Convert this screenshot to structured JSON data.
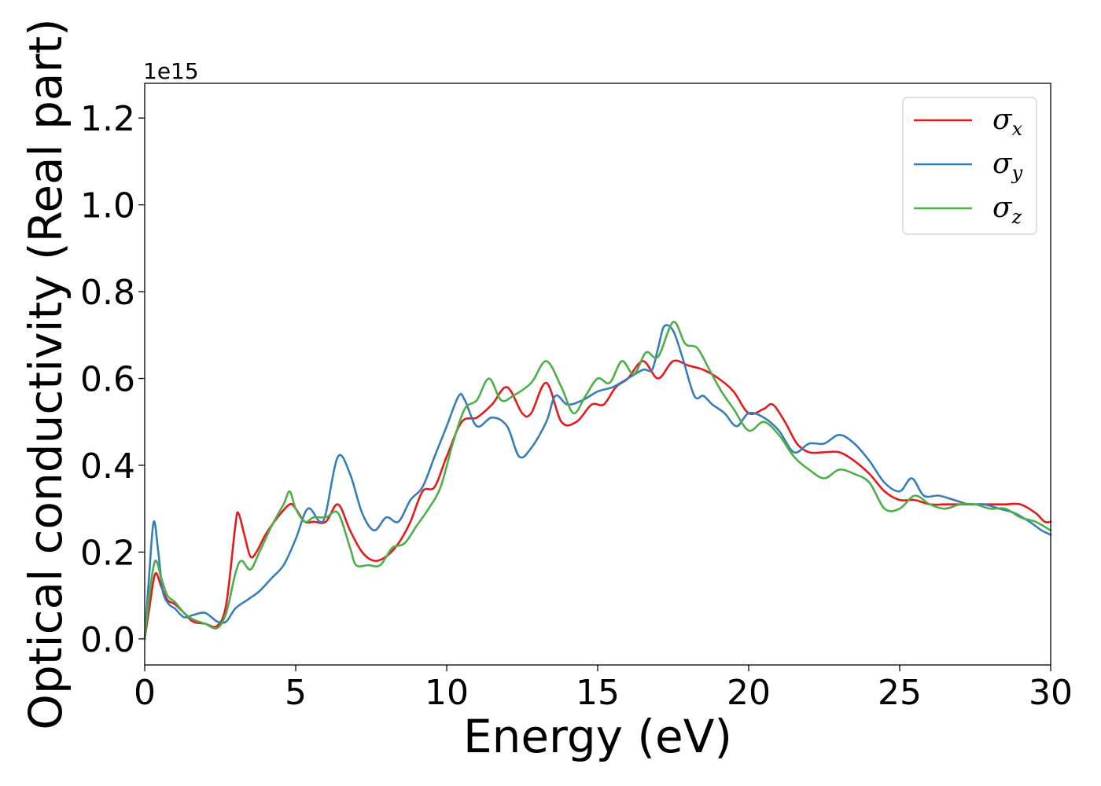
{
  "chart_data": {
    "type": "line",
    "xlabel": "Energy (eV)",
    "ylabel": "Optical conductivity (Real part)",
    "y_offset_label": "1e15",
    "xlim": [
      0,
      30
    ],
    "ylim": [
      -0.06,
      1.28
    ],
    "x_ticks": [
      0,
      5,
      10,
      15,
      20,
      25,
      30
    ],
    "x_tick_labels": [
      "0",
      "5",
      "10",
      "15",
      "20",
      "25",
      "30"
    ],
    "y_ticks": [
      0.0,
      0.2,
      0.4,
      0.6,
      0.8,
      1.0,
      1.2
    ],
    "y_tick_labels": [
      "0.0",
      "0.2",
      "0.4",
      "0.6",
      "0.8",
      "1.0",
      "1.2"
    ],
    "grid": false,
    "legend_position": "top-right",
    "series": [
      {
        "name": "σx",
        "symbol": "σ",
        "subscript": "x",
        "color": "#e41a1c",
        "x": [
          0,
          0.15,
          0.35,
          0.55,
          0.75,
          1.0,
          1.3,
          1.6,
          2.0,
          2.4,
          2.7,
          3.0,
          3.1,
          3.3,
          3.5,
          3.7,
          4.0,
          4.4,
          4.8,
          5.0,
          5.3,
          5.6,
          6.0,
          6.4,
          6.8,
          7.2,
          7.6,
          8.0,
          8.4,
          8.8,
          9.2,
          9.6,
          10.0,
          10.5,
          11.0,
          11.5,
          12.0,
          12.5,
          12.8,
          13.3,
          13.8,
          14.3,
          14.8,
          15.2,
          15.6,
          16.0,
          16.5,
          17.0,
          17.5,
          18.0,
          18.5,
          19.0,
          19.5,
          20.0,
          20.5,
          20.8,
          21.2,
          21.6,
          22.0,
          22.5,
          23.0,
          23.5,
          24.0,
          24.5,
          25.0,
          25.5,
          26.0,
          26.5,
          27.0,
          27.5,
          28.0,
          28.5,
          29.0,
          29.5,
          29.8,
          30.0
        ],
        "y": [
          0.0,
          0.07,
          0.15,
          0.12,
          0.09,
          0.08,
          0.06,
          0.04,
          0.035,
          0.03,
          0.08,
          0.26,
          0.29,
          0.24,
          0.19,
          0.2,
          0.24,
          0.28,
          0.31,
          0.3,
          0.27,
          0.27,
          0.27,
          0.31,
          0.25,
          0.2,
          0.18,
          0.19,
          0.22,
          0.27,
          0.34,
          0.35,
          0.42,
          0.5,
          0.51,
          0.54,
          0.58,
          0.52,
          0.52,
          0.59,
          0.5,
          0.5,
          0.54,
          0.54,
          0.58,
          0.6,
          0.64,
          0.6,
          0.64,
          0.63,
          0.62,
          0.6,
          0.57,
          0.52,
          0.53,
          0.54,
          0.5,
          0.45,
          0.43,
          0.43,
          0.43,
          0.41,
          0.38,
          0.34,
          0.32,
          0.32,
          0.31,
          0.31,
          0.31,
          0.31,
          0.31,
          0.31,
          0.31,
          0.29,
          0.27,
          0.27
        ]
      },
      {
        "name": "σy",
        "symbol": "σ",
        "subscript": "y",
        "color": "#377eb8",
        "x": [
          0,
          0.15,
          0.3,
          0.45,
          0.6,
          0.8,
          1.0,
          1.3,
          1.6,
          2.0,
          2.4,
          2.7,
          3.0,
          3.4,
          3.8,
          4.2,
          4.6,
          5.0,
          5.4,
          5.8,
          6.0,
          6.4,
          6.8,
          7.2,
          7.6,
          8.0,
          8.4,
          8.8,
          9.2,
          9.6,
          10.0,
          10.4,
          10.6,
          11.0,
          11.5,
          12.0,
          12.4,
          12.8,
          13.3,
          13.6,
          14.0,
          14.5,
          15.0,
          15.5,
          16.0,
          16.5,
          16.8,
          17.0,
          17.2,
          17.5,
          17.8,
          18.2,
          18.5,
          18.8,
          19.2,
          19.6,
          20.0,
          20.5,
          21.0,
          21.5,
          22.0,
          22.5,
          23.0,
          23.5,
          24.0,
          24.5,
          25.0,
          25.4,
          25.8,
          26.3,
          26.8,
          27.3,
          27.8,
          28.3,
          28.8,
          29.3,
          29.7,
          30.0
        ],
        "y": [
          0.0,
          0.15,
          0.27,
          0.2,
          0.11,
          0.08,
          0.07,
          0.05,
          0.055,
          0.06,
          0.04,
          0.04,
          0.07,
          0.09,
          0.11,
          0.14,
          0.17,
          0.23,
          0.3,
          0.27,
          0.29,
          0.42,
          0.38,
          0.29,
          0.25,
          0.28,
          0.27,
          0.32,
          0.35,
          0.42,
          0.49,
          0.56,
          0.55,
          0.49,
          0.51,
          0.49,
          0.42,
          0.44,
          0.5,
          0.56,
          0.54,
          0.55,
          0.57,
          0.58,
          0.6,
          0.62,
          0.62,
          0.67,
          0.72,
          0.71,
          0.65,
          0.56,
          0.56,
          0.54,
          0.52,
          0.49,
          0.52,
          0.51,
          0.48,
          0.43,
          0.45,
          0.45,
          0.47,
          0.45,
          0.41,
          0.36,
          0.34,
          0.37,
          0.33,
          0.33,
          0.32,
          0.31,
          0.31,
          0.3,
          0.29,
          0.27,
          0.25,
          0.24
        ]
      },
      {
        "name": "σz",
        "symbol": "σ",
        "subscript": "z",
        "color": "#4daf4a",
        "x": [
          0,
          0.15,
          0.35,
          0.55,
          0.75,
          1.0,
          1.3,
          1.6,
          2.0,
          2.4,
          2.7,
          3.0,
          3.2,
          3.5,
          3.8,
          4.2,
          4.6,
          4.8,
          5.0,
          5.3,
          5.6,
          6.0,
          6.4,
          6.8,
          7.0,
          7.4,
          7.8,
          8.2,
          8.6,
          9.0,
          9.4,
          9.8,
          10.2,
          10.6,
          11.0,
          11.4,
          11.8,
          12.2,
          12.8,
          13.3,
          13.8,
          14.2,
          14.6,
          15.0,
          15.4,
          15.8,
          16.2,
          16.6,
          17.0,
          17.5,
          17.9,
          18.3,
          18.7,
          19.1,
          19.5,
          20.0,
          20.5,
          21.0,
          21.5,
          22.0,
          22.5,
          23.0,
          23.5,
          24.0,
          24.5,
          25.0,
          25.5,
          26.0,
          26.5,
          27.0,
          27.5,
          28.0,
          28.5,
          29.0,
          29.5,
          30.0
        ],
        "y": [
          0.0,
          0.1,
          0.18,
          0.14,
          0.1,
          0.085,
          0.06,
          0.045,
          0.035,
          0.025,
          0.06,
          0.15,
          0.18,
          0.16,
          0.2,
          0.26,
          0.31,
          0.34,
          0.3,
          0.27,
          0.28,
          0.28,
          0.29,
          0.21,
          0.17,
          0.17,
          0.17,
          0.21,
          0.22,
          0.26,
          0.3,
          0.35,
          0.45,
          0.53,
          0.55,
          0.6,
          0.55,
          0.56,
          0.59,
          0.64,
          0.58,
          0.52,
          0.56,
          0.6,
          0.59,
          0.64,
          0.61,
          0.66,
          0.65,
          0.73,
          0.68,
          0.67,
          0.62,
          0.57,
          0.53,
          0.48,
          0.5,
          0.47,
          0.42,
          0.39,
          0.37,
          0.39,
          0.38,
          0.36,
          0.3,
          0.3,
          0.33,
          0.31,
          0.3,
          0.31,
          0.31,
          0.3,
          0.3,
          0.28,
          0.27,
          0.25
        ]
      }
    ]
  }
}
